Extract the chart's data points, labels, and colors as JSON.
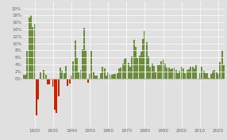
{
  "background_color": "#e0e0e0",
  "bar_color_positive": "#6b8c3a",
  "bar_color_negative": "#cc2200",
  "grid_color": "#ffffff",
  "data": {
    "1914": 1.0,
    "1915": 1.0,
    "1916": 7.9,
    "1917": 17.4,
    "1918": 18.0,
    "1919": 14.6,
    "1920": 15.6,
    "1921": -10.5,
    "1922": -6.1,
    "1923": 1.8,
    "1924": 0.0,
    "1925": 2.3,
    "1926": 1.1,
    "1927": -1.7,
    "1928": -1.7,
    "1929": 0.0,
    "1930": -2.3,
    "1931": -9.0,
    "1932": -9.9,
    "1933": -5.1,
    "1934": 3.1,
    "1935": 2.2,
    "1936": 1.5,
    "1937": 3.6,
    "1938": -2.1,
    "1939": -1.4,
    "1940": 0.7,
    "1941": 5.0,
    "1942": 10.9,
    "1943": 6.1,
    "1944": 1.7,
    "1945": 2.3,
    "1946": 8.3,
    "1947": 14.4,
    "1948": 8.1,
    "1949": -1.2,
    "1950": 1.3,
    "1951": 7.9,
    "1952": 1.9,
    "1953": 0.8,
    "1954": 0.7,
    "1955": -0.4,
    "1956": 1.5,
    "1957": 3.3,
    "1958": 2.8,
    "1959": 0.7,
    "1960": 1.7,
    "1961": 1.0,
    "1962": 1.0,
    "1963": 1.3,
    "1964": 1.3,
    "1965": 1.6,
    "1966": 2.9,
    "1967": 3.1,
    "1968": 4.2,
    "1969": 5.5,
    "1970": 5.7,
    "1971": 4.4,
    "1972": 3.2,
    "1973": 6.2,
    "1974": 11.1,
    "1975": 9.1,
    "1976": 5.7,
    "1977": 6.5,
    "1978": 7.6,
    "1979": 11.3,
    "1980": 13.5,
    "1981": 10.3,
    "1982": 6.2,
    "1983": 3.2,
    "1984": 4.3,
    "1985": 3.6,
    "1986": 1.9,
    "1987": 3.7,
    "1988": 4.1,
    "1989": 4.8,
    "1990": 5.4,
    "1991": 4.2,
    "1992": 3.0,
    "1993": 3.0,
    "1994": 2.6,
    "1995": 2.8,
    "1996": 3.0,
    "1997": 2.3,
    "1998": 1.6,
    "1999": 2.2,
    "2000": 3.4,
    "2001": 2.8,
    "2002": 1.6,
    "2003": 2.3,
    "2004": 2.7,
    "2005": 3.4,
    "2006": 3.2,
    "2007": 2.8,
    "2008": 3.8,
    "2009": -0.4,
    "2010": 1.6,
    "2011": 3.2,
    "2012": 2.1,
    "2013": 1.5,
    "2014": 1.6,
    "2015": 0.1,
    "2016": 1.3,
    "2017": 2.1,
    "2018": 2.4,
    "2019": 1.8,
    "2020": 1.2,
    "2021": 4.7,
    "2022": 8.0,
    "2023": 4.1
  },
  "ylim_min": -14,
  "ylim_max": 22,
  "yticks": [
    0,
    2,
    4,
    6,
    8,
    10,
    12,
    14,
    16,
    18,
    20
  ],
  "xtick_years": [
    1920,
    1930,
    1940,
    1950,
    1960,
    1970,
    1980,
    1990,
    2000,
    2010,
    2020
  ],
  "tick_fontsize": 4.0,
  "axis_color": "#999999"
}
